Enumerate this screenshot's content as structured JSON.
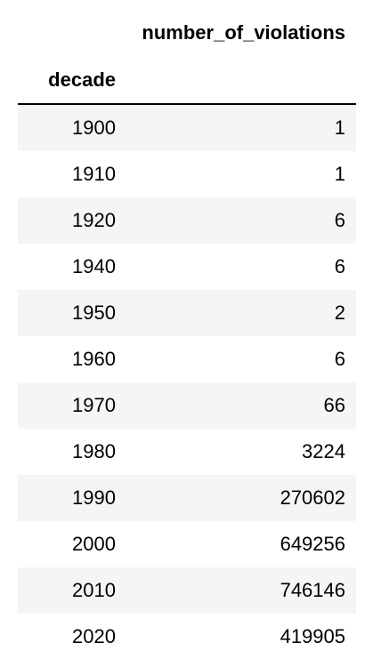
{
  "table": {
    "column_header": "number_of_violations",
    "index_name": "decade",
    "rows": [
      {
        "decade": "1900",
        "count": "1"
      },
      {
        "decade": "1910",
        "count": "1"
      },
      {
        "decade": "1920",
        "count": "6"
      },
      {
        "decade": "1940",
        "count": "6"
      },
      {
        "decade": "1950",
        "count": "2"
      },
      {
        "decade": "1960",
        "count": "6"
      },
      {
        "decade": "1970",
        "count": "66"
      },
      {
        "decade": "1980",
        "count": "3224"
      },
      {
        "decade": "1990",
        "count": "270602"
      },
      {
        "decade": "2000",
        "count": "649256"
      },
      {
        "decade": "2010",
        "count": "746146"
      },
      {
        "decade": "2020",
        "count": "419905"
      }
    ]
  }
}
